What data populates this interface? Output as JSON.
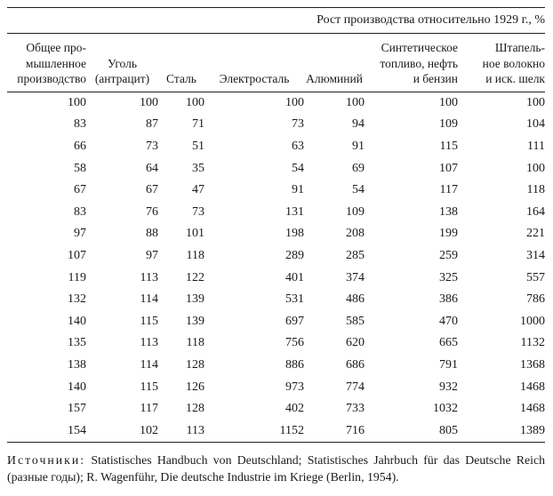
{
  "table": {
    "title": "Рост производства относительно 1929 г., %",
    "columns": [
      {
        "lines": [
          "Общее про-",
          "мышленное",
          "производство"
        ]
      },
      {
        "lines": [
          "Уголь",
          "(антрацит)"
        ]
      },
      {
        "lines": [
          "Сталь"
        ]
      },
      {
        "lines": [
          "Электросталь"
        ]
      },
      {
        "lines": [
          "Алюминий"
        ]
      },
      {
        "lines": [
          "Синтетическое",
          "топливо, нефть",
          "и бензин"
        ]
      },
      {
        "lines": [
          "Штапель-",
          "ное волокно",
          "и иск. шелк"
        ]
      }
    ],
    "rows": [
      [
        "100",
        "100",
        "100",
        "100",
        "100",
        "100",
        "100"
      ],
      [
        "83",
        "87",
        "71",
        "73",
        "94",
        "109",
        "104"
      ],
      [
        "66",
        "73",
        "51",
        "63",
        "91",
        "115",
        "111"
      ],
      [
        "58",
        "64",
        "35",
        "54",
        "69",
        "107",
        "100"
      ],
      [
        "67",
        "67",
        "47",
        "91",
        "54",
        "117",
        "118"
      ],
      [
        "83",
        "76",
        "73",
        "131",
        "109",
        "138",
        "164"
      ],
      [
        "97",
        "88",
        "101",
        "198",
        "208",
        "199",
        "221"
      ],
      [
        "107",
        "97",
        "118",
        "289",
        "285",
        "259",
        "314"
      ],
      [
        "119",
        "113",
        "122",
        "401",
        "374",
        "325",
        "557"
      ],
      [
        "132",
        "114",
        "139",
        "531",
        "486",
        "386",
        "786"
      ],
      [
        "140",
        "115",
        "139",
        "697",
        "585",
        "470",
        "1000"
      ],
      [
        "135",
        "113",
        "118",
        "756",
        "620",
        "665",
        "1132"
      ],
      [
        "138",
        "114",
        "128",
        "886",
        "686",
        "791",
        "1368"
      ],
      [
        "140",
        "115",
        "126",
        "973",
        "774",
        "932",
        "1468"
      ],
      [
        "157",
        "117",
        "128",
        "402",
        "733",
        "1032",
        "1468"
      ],
      [
        "154",
        "102",
        "113",
        "1152",
        "716",
        "805",
        "1389"
      ]
    ]
  },
  "sources": {
    "label": "Источники:",
    "text": "Statistisches Handbuch von Deutschland; Statistisches Jahrbuch für das Deutsche Reich (разные годы); R. Wagenführ, Die deutsche Industrie im Kriege (Berlin, 1954)."
  }
}
